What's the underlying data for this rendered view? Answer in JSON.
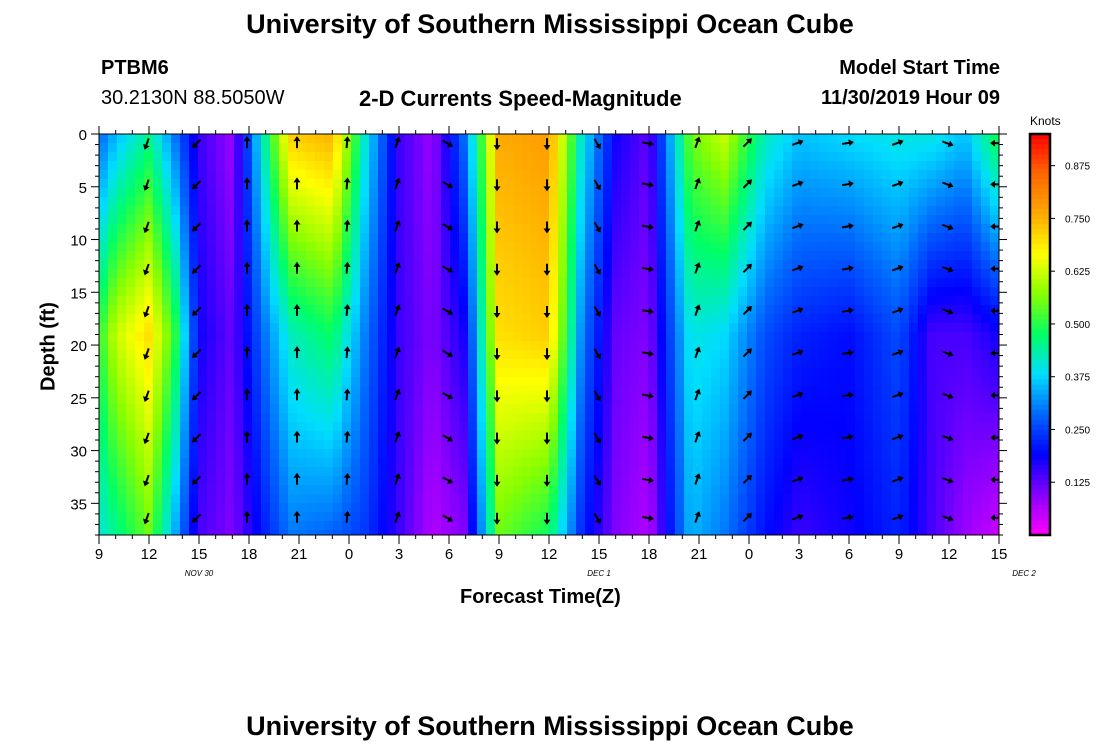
{
  "header": {
    "title": "University of Southern Mississippi Ocean Cube",
    "footer_title": "University of Southern Mississippi Ocean Cube",
    "station_id": "PTBM6",
    "coordinates": "30.2130N 88.5050W",
    "plot_title": "2-D Currents Speed-Magnitude",
    "model_start_label": "Model Start Time",
    "model_start_value": "11/30/2019 Hour 09"
  },
  "chart_data": {
    "type": "heatmap",
    "title": "2-D Currents Speed-Magnitude",
    "xlabel": "Forecast Time(Z)",
    "ylabel": "Depth (ft)",
    "x_ticks": [
      "9",
      "12",
      "15",
      "18",
      "21",
      "0",
      "3",
      "6",
      "9",
      "12",
      "15",
      "18",
      "21",
      "0",
      "3",
      "6",
      "9",
      "12",
      "15"
    ],
    "date_labels": [
      {
        "text": "NOV 30",
        "hour_index": 2
      },
      {
        "text": "DEC 1",
        "hour_index": 10
      },
      {
        "text": "DEC 2",
        "hour_index": 18.5
      }
    ],
    "y_ticks": [
      0,
      5,
      10,
      15,
      20,
      25,
      30,
      35
    ],
    "ylim": [
      0,
      38
    ],
    "xlim_hours": [
      0,
      54
    ],
    "colorbar": {
      "unit": "Knots",
      "ticks": [
        "0.875",
        "0.750",
        "0.625",
        "0.500",
        "0.375",
        "0.250",
        "0.125"
      ],
      "range": [
        0,
        0.95
      ],
      "colors": [
        "#ff00ff",
        "#8800ff",
        "#0000ff",
        "#0066ff",
        "#00ddff",
        "#00ff66",
        "#88ff00",
        "#ffff00",
        "#ffaa00",
        "#ff6600",
        "#ff0000"
      ]
    },
    "speed_profile": [
      {
        "hour": 0,
        "top": 0.28,
        "mid": 0.5,
        "bot": 0.4
      },
      {
        "hour": 1,
        "top": 0.35,
        "mid": 0.62,
        "bot": 0.45
      },
      {
        "hour": 3,
        "top": 0.45,
        "mid": 0.7,
        "bot": 0.55
      },
      {
        "hour": 4.5,
        "top": 0.3,
        "mid": 0.52,
        "bot": 0.35
      },
      {
        "hour": 6,
        "top": 0.15,
        "mid": 0.18,
        "bot": 0.14
      },
      {
        "hour": 8,
        "top": 0.08,
        "mid": 0.12,
        "bot": 0.1
      },
      {
        "hour": 10,
        "top": 0.45,
        "mid": 0.3,
        "bot": 0.22
      },
      {
        "hour": 11.5,
        "top": 0.72,
        "mid": 0.42,
        "bot": 0.3
      },
      {
        "hour": 14,
        "top": 0.75,
        "mid": 0.48,
        "bot": 0.28
      },
      {
        "hour": 16,
        "top": 0.4,
        "mid": 0.3,
        "bot": 0.24
      },
      {
        "hour": 18,
        "top": 0.15,
        "mid": 0.15,
        "bot": 0.15
      },
      {
        "hour": 20,
        "top": 0.08,
        "mid": 0.1,
        "bot": 0.06
      },
      {
        "hour": 22,
        "top": 0.3,
        "mid": 0.18,
        "bot": 0.1
      },
      {
        "hour": 24,
        "top": 0.76,
        "mid": 0.7,
        "bot": 0.55
      },
      {
        "hour": 27,
        "top": 0.78,
        "mid": 0.72,
        "bot": 0.48
      },
      {
        "hour": 29,
        "top": 0.4,
        "mid": 0.3,
        "bot": 0.22
      },
      {
        "hour": 31,
        "top": 0.18,
        "mid": 0.12,
        "bot": 0.1
      },
      {
        "hour": 33,
        "top": 0.12,
        "mid": 0.1,
        "bot": 0.06
      },
      {
        "hour": 35.5,
        "top": 0.55,
        "mid": 0.4,
        "bot": 0.35
      },
      {
        "hour": 37.5,
        "top": 0.62,
        "mid": 0.38,
        "bot": 0.3
      },
      {
        "hour": 40,
        "top": 0.42,
        "mid": 0.26,
        "bot": 0.2
      },
      {
        "hour": 42,
        "top": 0.36,
        "mid": 0.22,
        "bot": 0.15
      },
      {
        "hour": 45,
        "top": 0.38,
        "mid": 0.2,
        "bot": 0.18
      },
      {
        "hour": 48,
        "top": 0.4,
        "mid": 0.26,
        "bot": 0.22
      },
      {
        "hour": 50,
        "top": 0.4,
        "mid": 0.14,
        "bot": 0.14
      },
      {
        "hour": 52,
        "top": 0.36,
        "mid": 0.14,
        "bot": 0.08
      },
      {
        "hour": 54,
        "top": 0.5,
        "mid": 0.18,
        "bot": 0.04
      }
    ],
    "arrow_hours": [
      3,
      6,
      9,
      12,
      15,
      18,
      21,
      24,
      27,
      30,
      33,
      36,
      39,
      42,
      45,
      48,
      51,
      54
    ],
    "arrow_depths": [
      0.3,
      4.2,
      8.2,
      12.2,
      16.2,
      20.2,
      24.2,
      28.2,
      32.2,
      35.8
    ],
    "arrow_direction_deg": [
      {
        "hour": 3,
        "dir": 200
      },
      {
        "hour": 6,
        "dir": 225
      },
      {
        "hour": 9,
        "dir": 0
      },
      {
        "hour": 12,
        "dir": 0
      },
      {
        "hour": 15,
        "dir": 5
      },
      {
        "hour": 18,
        "dir": 20
      },
      {
        "hour": 21,
        "dir": 120
      },
      {
        "hour": 24,
        "dir": 180
      },
      {
        "hour": 27,
        "dir": 180
      },
      {
        "hour": 30,
        "dir": 150
      },
      {
        "hour": 33,
        "dir": 100
      },
      {
        "hour": 36,
        "dir": 20
      },
      {
        "hour": 39,
        "dir": 45
      },
      {
        "hour": 42,
        "dir": 70
      },
      {
        "hour": 45,
        "dir": 80
      },
      {
        "hour": 48,
        "dir": 70
      },
      {
        "hour": 51,
        "dir": 110
      },
      {
        "hour": 54,
        "dir": 270
      }
    ]
  }
}
